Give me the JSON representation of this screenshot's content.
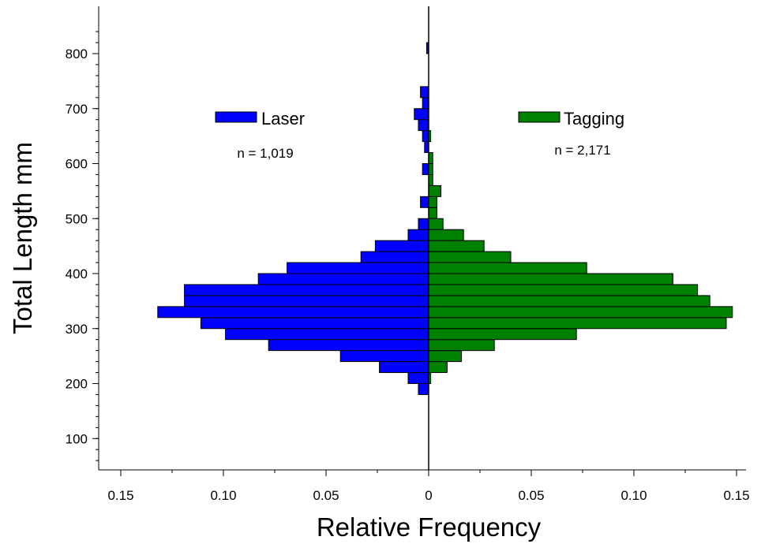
{
  "chart_data": {
    "type": "bar",
    "orientation": "horizontal-back-to-back",
    "xlabel": "Relative Frequency",
    "ylabel": "Total Length mm",
    "xlim": [
      -0.15,
      0.15
    ],
    "ylim": [
      60,
      860
    ],
    "x_ticks": [
      {
        "value": -0.15,
        "label": "0.15"
      },
      {
        "value": -0.1,
        "label": "0.10"
      },
      {
        "value": -0.05,
        "label": "0.05"
      },
      {
        "value": 0,
        "label": "0"
      },
      {
        "value": 0.05,
        "label": "0.05"
      },
      {
        "value": 0.1,
        "label": "0.10"
      },
      {
        "value": 0.15,
        "label": "0.15"
      }
    ],
    "y_ticks": [
      100,
      200,
      300,
      400,
      500,
      600,
      700,
      800
    ],
    "bin_width": 20,
    "series": [
      {
        "name": "Laser",
        "n_label": "n = 1,019",
        "color": "#0000ff",
        "side": "left",
        "bins": [
          {
            "y": 190,
            "value": 0.005
          },
          {
            "y": 210,
            "value": 0.01
          },
          {
            "y": 230,
            "value": 0.024
          },
          {
            "y": 250,
            "value": 0.043
          },
          {
            "y": 270,
            "value": 0.078
          },
          {
            "y": 290,
            "value": 0.099
          },
          {
            "y": 310,
            "value": 0.111
          },
          {
            "y": 330,
            "value": 0.132
          },
          {
            "y": 350,
            "value": 0.119
          },
          {
            "y": 370,
            "value": 0.119
          },
          {
            "y": 390,
            "value": 0.083
          },
          {
            "y": 410,
            "value": 0.069
          },
          {
            "y": 430,
            "value": 0.033
          },
          {
            "y": 450,
            "value": 0.026
          },
          {
            "y": 470,
            "value": 0.01
          },
          {
            "y": 490,
            "value": 0.005
          },
          {
            "y": 530,
            "value": 0.004
          },
          {
            "y": 590,
            "value": 0.003
          },
          {
            "y": 630,
            "value": 0.002
          },
          {
            "y": 650,
            "value": 0.003
          },
          {
            "y": 670,
            "value": 0.005
          },
          {
            "y": 690,
            "value": 0.007
          },
          {
            "y": 710,
            "value": 0.003
          },
          {
            "y": 730,
            "value": 0.004
          },
          {
            "y": 810,
            "value": 0.001
          }
        ]
      },
      {
        "name": "Tagging",
        "n_label": "n = 2,171",
        "color": "#008000",
        "side": "right",
        "bins": [
          {
            "y": 210,
            "value": 0.001
          },
          {
            "y": 230,
            "value": 0.009
          },
          {
            "y": 250,
            "value": 0.016
          },
          {
            "y": 270,
            "value": 0.032
          },
          {
            "y": 290,
            "value": 0.072
          },
          {
            "y": 310,
            "value": 0.145
          },
          {
            "y": 330,
            "value": 0.148
          },
          {
            "y": 350,
            "value": 0.137
          },
          {
            "y": 370,
            "value": 0.131
          },
          {
            "y": 390,
            "value": 0.119
          },
          {
            "y": 410,
            "value": 0.077
          },
          {
            "y": 430,
            "value": 0.04
          },
          {
            "y": 450,
            "value": 0.027
          },
          {
            "y": 470,
            "value": 0.017
          },
          {
            "y": 490,
            "value": 0.007
          },
          {
            "y": 510,
            "value": 0.004
          },
          {
            "y": 530,
            "value": 0.004
          },
          {
            "y": 550,
            "value": 0.006
          },
          {
            "y": 570,
            "value": 0.002
          },
          {
            "y": 590,
            "value": 0.002
          },
          {
            "y": 610,
            "value": 0.002
          },
          {
            "y": 650,
            "value": 0.001
          }
        ]
      }
    ],
    "legend_placement": "upper, one per side"
  }
}
